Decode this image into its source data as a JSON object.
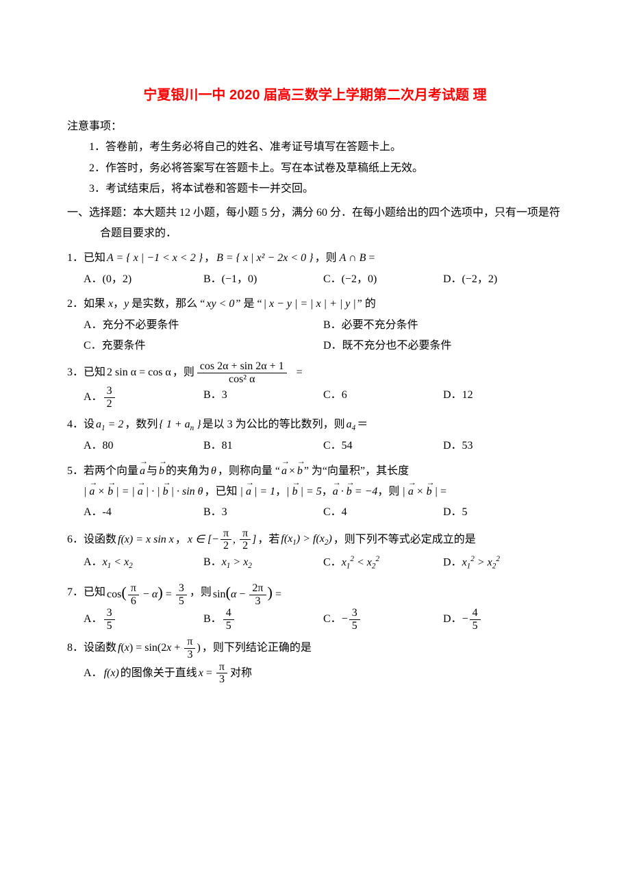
{
  "title": "宁夏银川一中 2020 届高三数学上学期第二次月考试题 理",
  "notice_head": "注意事项：",
  "notices": [
    "1．答卷前，考生务必将自己的姓名、准考证号填写在答题卡上。",
    "2．作答时，务必将答案写在答题卡上。写在本试卷及草稿纸上无效。",
    "3．考试结束后，将本试卷和答题卡一并交回。"
  ],
  "section1": "一、选择题：本大题共 12 小题，每小题 5 分，满分 60 分．在每小题给出的四个选项中，只有一项是符合题目要求的．",
  "q1": {
    "stem_a": "1．已知",
    "setA": "A = { x | −1 < x < 2 }",
    "mid": "，",
    "setB": "B = { x | x² − 2x < 0 }",
    "tail": "，则 A ∩ B =",
    "opts": [
      "A．(0，2)",
      "B．(−1，0)",
      "C．(−2，0)",
      "D．(−2，2)"
    ]
  },
  "q2": {
    "stem_a": "2．如果 x，y 是实数，那么 “",
    "e1": "xy < 0",
    "mid": "” 是 “",
    "e2": "| x − y | = | x | + | y |",
    "tail": "” 的",
    "opts": [
      "A．充分不必要条件",
      "B．必要不充分条件",
      "C．充要条件",
      "D．既不充分也不必要条件"
    ]
  },
  "q3": {
    "stem_a": "3．已知",
    "eq": "2 sin α = cos α",
    "mid": "，则",
    "frac_num": "cos 2α + sin 2α + 1",
    "frac_den": "cos² α",
    "eqend": "=",
    "opts": {
      "A": {
        "n": "3",
        "d": "2"
      },
      "B": "3",
      "C": "6",
      "D": "12"
    }
  },
  "q4": {
    "stem_a": "4．设",
    "a1": "a₁ = 2",
    "mid": "，数列",
    "seq": "{ 1 + aₙ }",
    "mid2": "是以 3 为公比的等比数列，则",
    "a4": "a₄",
    "eq": "＝",
    "opts": [
      "A．80",
      "B．81",
      "C．54",
      "D．53"
    ]
  },
  "q5": {
    "line1_a": "5．若两个向量",
    "a": "a",
    "b": "b",
    "line1_b": "与",
    "line1_c": "的夹角为",
    "theta": "θ",
    "line1_d": "，则称向量 “",
    "line1_e": "” 为“向量积”，其长度",
    "line2_a": "|",
    "line2_eq": " × ",
    "line2_b": "| = |",
    "sin": "| · sin θ",
    "given": "，已知 |",
    "v1": "| = 1，|",
    "v5": "| = 5，",
    "dot": " · ",
    "m4": " = −4，则 |",
    "tail": "| =",
    "opts": [
      "A．-4",
      "B．3",
      "C．4",
      "D．5"
    ]
  },
  "q6": {
    "stem_a": "6．设函数",
    "fx": "f(x) = x sin x",
    "mid1": "，",
    "dom_a": "x ∈ [−",
    "pi": "π",
    "two": "2",
    "dom_b": "，",
    "dom_c": "]",
    "mid2": "，若",
    "cond": "f(x₁) > f(x₂)",
    "tail": "，则下列不等式必定成立的是",
    "opts": [
      "A．x₁ < x₂",
      "B．x₁ > x₂",
      "C．x₁² < x₂²",
      "D．x₁² > x₂²"
    ]
  },
  "q7": {
    "stem_a": "7．已知",
    "cos_l": "cos",
    "p6": "π",
    "six": "6",
    "minus": "− α",
    "eq35_n": "3",
    "eq35_d": "5",
    "mid": "，则",
    "sin_l": "sin",
    "a_m": "α −",
    "tp": "2π",
    "three": "3",
    "eqend": "=",
    "opts": {
      "A": {
        "n": "3",
        "d": "5"
      },
      "B": {
        "n": "4",
        "d": "5"
      },
      "C": {
        "s": "−",
        "n": "3",
        "d": "5"
      },
      "D": {
        "s": "−",
        "n": "4",
        "d": "5"
      }
    }
  },
  "q8": {
    "stem_a": "8．设函数",
    "fx_a": "f(x) = sin(2x +",
    "pi": "π",
    "three": "3",
    "fx_b": ")",
    "tail": "，则下列结论正确的是",
    "optA_a": "A．",
    "optA_fx": "f(x)",
    "optA_b": "的图像关于直线",
    "optA_x": "x =",
    "optA_c": "对称"
  }
}
